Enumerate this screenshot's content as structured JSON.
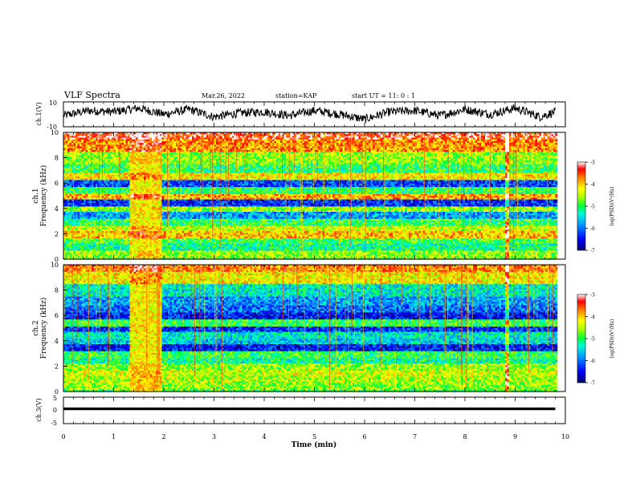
{
  "header": {
    "title": "VLF Spectra",
    "date": "Mar.26, 2022",
    "station": "station=KAP",
    "start": "start UT = 11: 0 : 1"
  },
  "chart_data": [
    {
      "type": "line",
      "panel": "ch1-waveform",
      "ylabel": "ch.1(V)",
      "ylim": [
        -10,
        10
      ],
      "ytick_labels": [
        "10",
        "-10"
      ],
      "xlim": [
        0,
        10
      ],
      "x": [
        0.0,
        0.5,
        1.0,
        1.5,
        2.0,
        2.5,
        3.0,
        3.5,
        4.0,
        4.5,
        5.0,
        5.5,
        6.0,
        6.5,
        7.0,
        7.5,
        8.0,
        8.5,
        9.0,
        9.5,
        9.8
      ],
      "values": [
        -1,
        3,
        2,
        5,
        0,
        4,
        -2,
        1,
        2,
        -1,
        3,
        0,
        -4,
        2,
        3,
        -1,
        4,
        0,
        5,
        -2,
        2
      ],
      "color": "#000000"
    },
    {
      "type": "heatmap",
      "panel": "ch1-spectrogram",
      "ylabel": "ch.1\nFrequency (kHz)",
      "ylabel_line1": "ch.1",
      "ylabel_line2": "Frequency (kHz)",
      "xlim": [
        0,
        10
      ],
      "ylim": [
        0,
        10
      ],
      "yticks": [
        "0",
        "2",
        "4",
        "6",
        "8",
        "10"
      ],
      "data_end_min": 9.8,
      "bright_interval_min": [
        1.3,
        1.95
      ],
      "bright_spot_min": 8.82,
      "bands_khz": [
        {
          "f": 10.0,
          "level": -3.3
        },
        {
          "f": 9.0,
          "level": -3.8
        },
        {
          "f": 8.0,
          "level": -4.6
        },
        {
          "f": 7.2,
          "level": -5.0
        },
        {
          "f": 6.5,
          "level": -4.2
        },
        {
          "f": 6.0,
          "level": -6.2
        },
        {
          "f": 5.4,
          "level": -5.0
        },
        {
          "f": 5.0,
          "level": -3.9
        },
        {
          "f": 4.5,
          "level": -6.3
        },
        {
          "f": 4.0,
          "level": -4.6
        },
        {
          "f": 3.5,
          "level": -5.8
        },
        {
          "f": 3.0,
          "level": -5.0
        },
        {
          "f": 2.5,
          "level": -4.4
        },
        {
          "f": 2.0,
          "level": -4.0
        },
        {
          "f": 1.5,
          "level": -4.9
        },
        {
          "f": 1.0,
          "level": -5.2
        },
        {
          "f": 0.5,
          "level": -4.6
        },
        {
          "f": 0.0,
          "level": -4.8
        }
      ],
      "colorbar": {
        "label": "log(PSD)(V²/Hz)",
        "range": [
          -7,
          -3
        ],
        "ticks": [
          "-3",
          "-4",
          "-5",
          "-6",
          "-7"
        ]
      }
    },
    {
      "type": "heatmap",
      "panel": "ch2-spectrogram",
      "ylabel": "ch.2\nFrequency (kHz)",
      "ylabel_line1": "ch.2",
      "ylabel_line2": "Frequency (kHz)",
      "xlim": [
        0,
        10
      ],
      "ylim": [
        0,
        10
      ],
      "yticks": [
        "0",
        "2",
        "4",
        "6",
        "8",
        "10"
      ],
      "data_end_min": 9.8,
      "bright_interval_min": [
        1.3,
        1.95
      ],
      "bright_spot_min": 8.82,
      "bands_khz": [
        {
          "f": 10.0,
          "level": -3.7
        },
        {
          "f": 9.0,
          "level": -4.2
        },
        {
          "f": 8.0,
          "level": -5.4
        },
        {
          "f": 7.2,
          "level": -5.8
        },
        {
          "f": 6.5,
          "level": -6.0
        },
        {
          "f": 6.0,
          "level": -6.4
        },
        {
          "f": 5.4,
          "level": -5.0
        },
        {
          "f": 5.0,
          "level": -6.3
        },
        {
          "f": 4.5,
          "level": -5.4
        },
        {
          "f": 4.0,
          "level": -5.6
        },
        {
          "f": 3.5,
          "level": -6.4
        },
        {
          "f": 3.0,
          "level": -5.0
        },
        {
          "f": 2.5,
          "level": -5.2
        },
        {
          "f": 2.0,
          "level": -4.6
        },
        {
          "f": 1.5,
          "level": -4.4
        },
        {
          "f": 1.0,
          "level": -4.5
        },
        {
          "f": 0.5,
          "level": -4.6
        },
        {
          "f": 0.0,
          "level": -5.0
        }
      ],
      "colorbar": {
        "label": "log(PSD)(V²/Hz)",
        "range": [
          -7,
          -3
        ],
        "ticks": [
          "-3",
          "-4",
          "-5",
          "-6",
          "-7"
        ]
      }
    },
    {
      "type": "line",
      "panel": "ch3-waveform",
      "ylabel": "ch.3(V)",
      "ylim": [
        -5,
        5
      ],
      "ytick_labels": [
        "5",
        "0",
        "-5"
      ],
      "xlim": [
        0,
        10
      ],
      "level_v": 0.6,
      "band_halfwidth_v": 0.5,
      "x_end": 9.8,
      "color": "#000000"
    }
  ],
  "xaxis": {
    "label": "Time (min)",
    "ticks": [
      "0",
      "1",
      "2",
      "3",
      "4",
      "5",
      "6",
      "7",
      "8",
      "9",
      "10"
    ]
  }
}
